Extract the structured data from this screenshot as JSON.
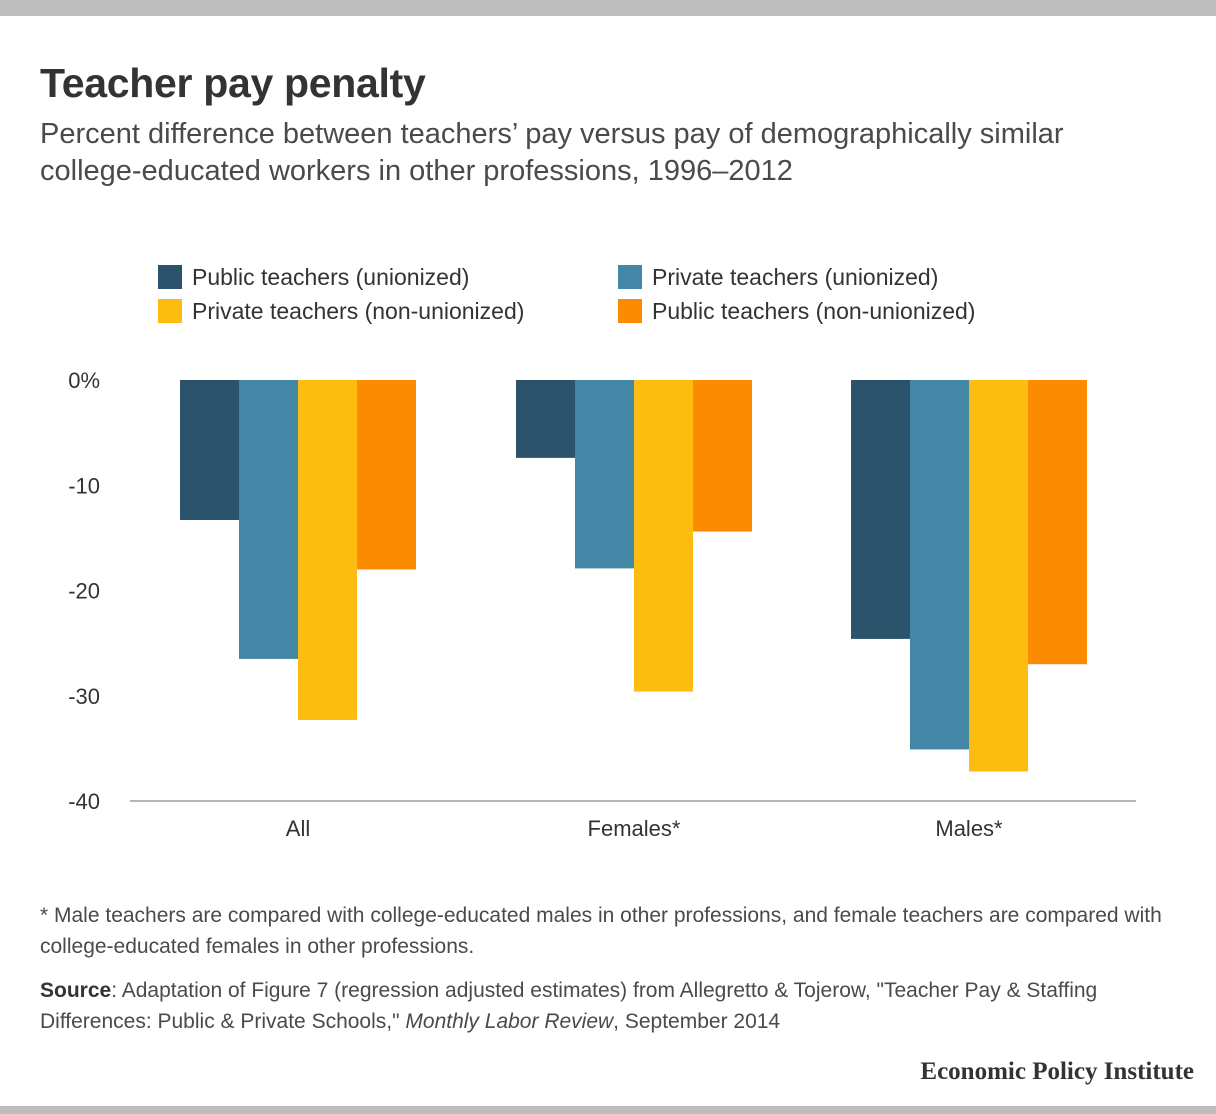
{
  "title": "Teacher pay penalty",
  "subtitle": "Percent difference between teachers’ pay versus pay of demographically similar college-educated workers in other professions, 1996–2012",
  "legend": [
    {
      "label": "Public teachers (unionized)",
      "color": "#2b536b"
    },
    {
      "label": "Private teachers (unionized)",
      "color": "#4386a6"
    },
    {
      "label": "Private teachers (non-unionized)",
      "color": "#fdbd10"
    },
    {
      "label": "Public teachers (non-unionized)",
      "color": "#fd8b02"
    }
  ],
  "chart_data": {
    "type": "bar",
    "categories": [
      "All",
      "Females*",
      "Males*"
    ],
    "series": [
      {
        "name": "Public teachers (unionized)",
        "color": "#2b536b",
        "values": [
          -13.3,
          -7.4,
          -24.6
        ]
      },
      {
        "name": "Private teachers (unionized)",
        "color": "#4386a6",
        "values": [
          -26.5,
          -17.9,
          -35.1
        ]
      },
      {
        "name": "Private teachers (non-unionized)",
        "color": "#fdbd10",
        "values": [
          -32.3,
          -29.6,
          -37.2
        ]
      },
      {
        "name": "Public teachers (non-unionized)",
        "color": "#fd8b02",
        "values": [
          -18.0,
          -14.4,
          -27.0
        ]
      }
    ],
    "y_ticks": [
      "0%",
      "-10",
      "-20",
      "-30",
      "-40"
    ],
    "ylim": [
      -40,
      0
    ],
    "grid": false
  },
  "note": "* Male teachers are compared with college-educated males in other professions, and female teachers are compared with college-educated females in other professions.",
  "source": {
    "label": "Source",
    "text_before": ": Adaptation of Figure 7 (regression adjusted estimates) from Allegretto & Tojerow, \"Teacher Pay & Staffing Differences: Public & Private Schools,\" ",
    "journal": "Monthly Labor Review",
    "text_after": ", September 2014"
  },
  "brand": "Economic Policy Institute"
}
